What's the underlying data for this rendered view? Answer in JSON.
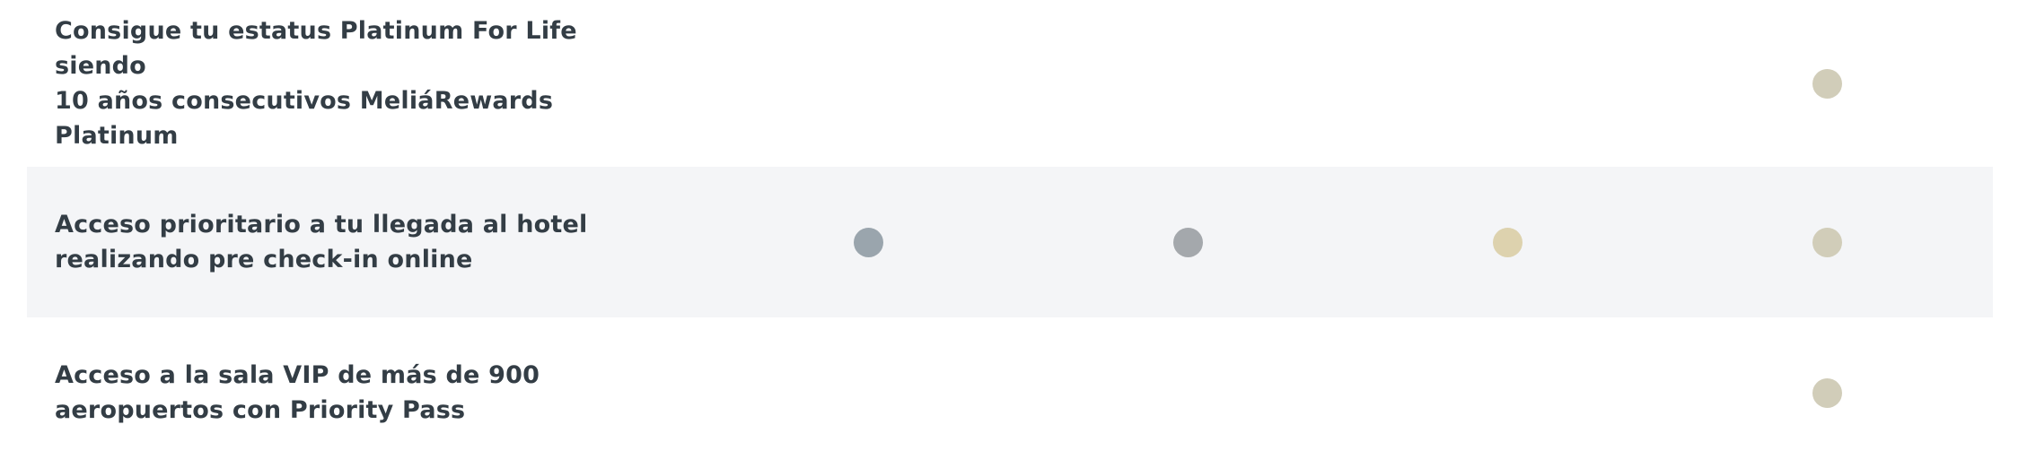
{
  "tier_colors": {
    "silver": "#9aa5ad",
    "gold": "#a4a8ac",
    "platinum": "#ddd2ae",
    "ambassador": "#d1cdb9"
  },
  "benefits": [
    {
      "label": "Consigue tu estatus Platinum For Life siendo\n10 años consecutivos MeliáRewards\nPlatinum",
      "tiers_included": [
        "ambassador"
      ]
    },
    {
      "label": "Acceso prioritario a tu llegada al hotel\nrealizando pre check-in online",
      "tiers_included": [
        "silver",
        "gold",
        "platinum",
        "ambassador"
      ]
    },
    {
      "label": "Acceso a la sala VIP de más de 900\naeropuertos con Priority Pass",
      "tiers_included": [
        "ambassador"
      ]
    }
  ]
}
